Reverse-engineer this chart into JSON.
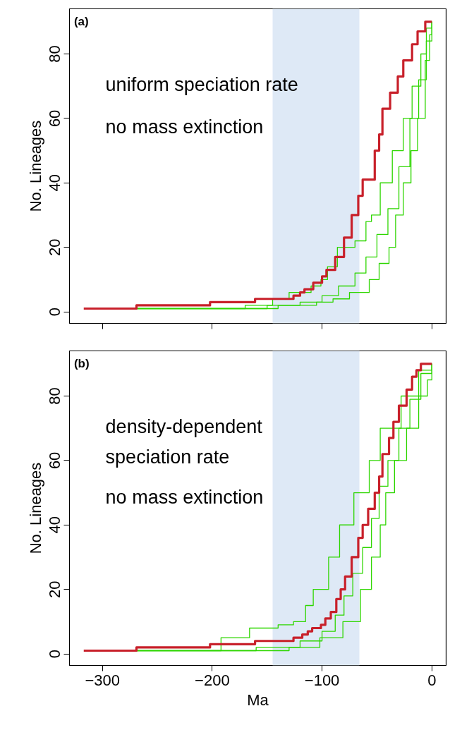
{
  "chart_data": [
    {
      "type": "step",
      "ylabel": "No. Lineages",
      "xlim": [
        -330,
        13
      ],
      "ylim": [
        -3.6,
        94
      ],
      "xticks": [
        -300,
        -200,
        -100,
        0
      ],
      "yticks": [
        0,
        20,
        40,
        60,
        80
      ],
      "tick_labels": "y",
      "grid": false,
      "annotations": [
        "(a)",
        "uniform speciation rate",
        "no mass extinction"
      ],
      "bands": [
        {
          "axis": "x",
          "from": -145,
          "to": -66,
          "color": "#dee9f6"
        }
      ],
      "series": [
        {
          "color": "#2ed600",
          "x": [
            -269,
            -170,
            -145,
            -130,
            -110,
            -101,
            -95,
            -86,
            -70,
            -60,
            -55,
            -47,
            -36,
            -26,
            -18,
            -10,
            -5,
            0
          ],
          "values": [
            1,
            2,
            4,
            6,
            8,
            10,
            14,
            20,
            22,
            28,
            30,
            40,
            50,
            60,
            70,
            80,
            88,
            90
          ]
        },
        {
          "color": "#2ed600",
          "x": [
            -269,
            -150,
            -120,
            -100,
            -85,
            -70,
            -60,
            -50,
            -40,
            -30,
            -20,
            -12,
            -5,
            0
          ],
          "values": [
            1,
            2,
            3,
            5,
            8,
            12,
            17,
            24,
            32,
            45,
            60,
            72,
            84,
            90
          ]
        },
        {
          "color": "#2ed600",
          "x": [
            -269,
            -140,
            -105,
            -90,
            -75,
            -57,
            -48,
            -39,
            -33,
            -26,
            -19,
            -13,
            -6,
            -2,
            0
          ],
          "values": [
            1,
            2,
            3,
            4,
            6,
            10,
            15,
            20,
            30,
            40,
            50,
            60,
            78,
            86,
            90
          ]
        },
        {
          "color": "#c8202a",
          "x": [
            -317,
            -269,
            -202,
            -161,
            -126,
            -120,
            -116,
            -108,
            -100,
            -96,
            -88,
            -80,
            -73,
            -67,
            -63,
            -52,
            -48,
            -45,
            -38,
            -31,
            -26,
            -18,
            -13,
            -6,
            0
          ],
          "values": [
            1,
            2,
            3,
            4,
            5,
            6,
            7,
            9,
            11,
            13,
            17,
            23,
            30,
            36,
            41,
            50,
            55,
            63,
            68,
            73,
            78,
            83,
            87,
            90,
            90
          ]
        }
      ]
    },
    {
      "type": "step",
      "xlabel": "Ma",
      "ylabel": "No. Lineages",
      "xlim": [
        -330,
        13
      ],
      "ylim": [
        -3.6,
        94
      ],
      "xticks": [
        -300,
        -200,
        -100,
        0
      ],
      "yticks": [
        0,
        20,
        40,
        60,
        80
      ],
      "grid": false,
      "annotations": [
        "(b)",
        "density-dependent\nspeciation rate",
        "no mass extinction"
      ],
      "bands": [
        {
          "axis": "x",
          "from": -145,
          "to": -66,
          "color": "#dee9f6"
        }
      ],
      "series": [
        {
          "color": "#2ed600",
          "x": [
            -269,
            -192,
            -166,
            -140,
            -126,
            -115,
            -108,
            -94,
            -84,
            -71,
            -57,
            -47,
            -28,
            -12,
            0
          ],
          "values": [
            1,
            5,
            8,
            9,
            10,
            15,
            20,
            30,
            40,
            50,
            60,
            70,
            80,
            88,
            90
          ]
        },
        {
          "color": "#2ed600",
          "x": [
            -269,
            -160,
            -120,
            -100,
            -88,
            -80,
            -72,
            -63,
            -55,
            -48,
            -40,
            -30,
            -20,
            -10,
            0
          ],
          "values": [
            1,
            2,
            4,
            7,
            12,
            18,
            25,
            33,
            42,
            52,
            60,
            70,
            79,
            87,
            90
          ]
        },
        {
          "color": "#2ed600",
          "x": [
            -269,
            -130,
            -102,
            -81,
            -65,
            -55,
            -47,
            -42,
            -34,
            -23,
            -12,
            -4,
            0
          ],
          "values": [
            1,
            2,
            5,
            10,
            20,
            30,
            40,
            50,
            60,
            70,
            80,
            85,
            90
          ]
        },
        {
          "color": "#c8202a",
          "x": [
            -317,
            -269,
            -202,
            -161,
            -126,
            -118,
            -113,
            -109,
            -101,
            -97,
            -92,
            -87,
            -83,
            -79,
            -73,
            -67,
            -63,
            -58,
            -52,
            -48,
            -45,
            -39,
            -35,
            -30,
            -23,
            -18,
            -14,
            -10,
            0
          ],
          "values": [
            1,
            2,
            3,
            4,
            5,
            6,
            7,
            8,
            9,
            11,
            13,
            17,
            20,
            24,
            30,
            36,
            40,
            45,
            50,
            55,
            62,
            67,
            72,
            77,
            82,
            86,
            88,
            90,
            90
          ]
        }
      ]
    }
  ]
}
